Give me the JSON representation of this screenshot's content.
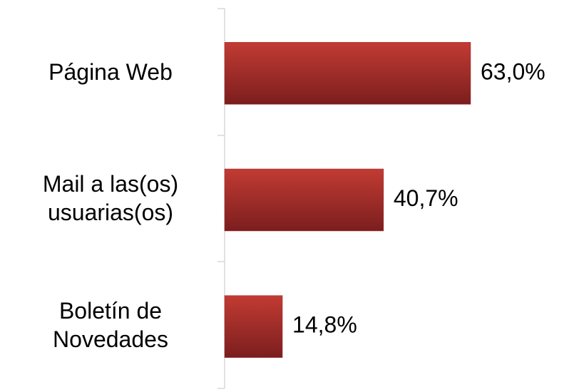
{
  "chart_data": {
    "type": "bar",
    "orientation": "horizontal",
    "categories": [
      "Página Web",
      "Mail a las(os) usuarias(os)",
      "Boletín de Novedades"
    ],
    "values": [
      63.0,
      40.7,
      14.8
    ],
    "value_labels": [
      "63,0%",
      "40,7%",
      "14,8%"
    ],
    "color": "#9e2a2a"
  }
}
